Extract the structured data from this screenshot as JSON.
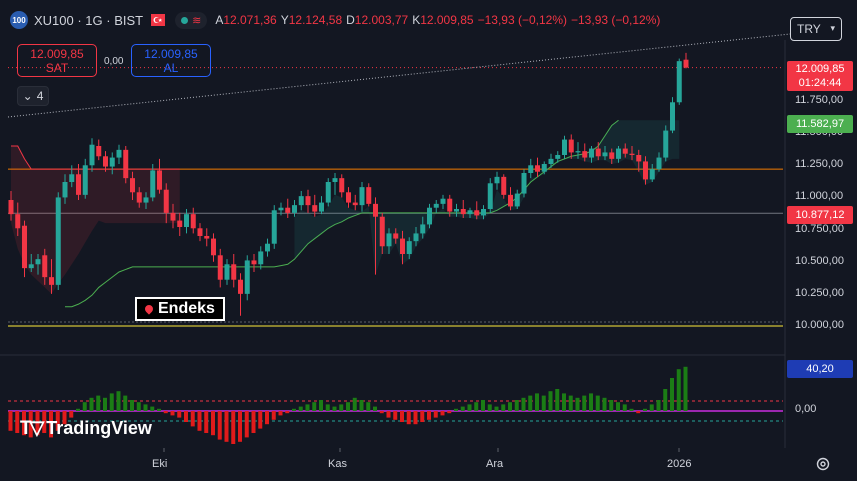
{
  "header": {
    "badge": "100",
    "symbol": "XU100 · 1G · BIST",
    "ohlc": [
      {
        "k": "A",
        "v": "12.071,36"
      },
      {
        "k": "Y",
        "v": "12.124,58"
      },
      {
        "k": "D",
        "v": "12.003,77"
      },
      {
        "k": "K",
        "v": "12.009,85"
      },
      {
        "k": "",
        "v": "−13,93 (−0,12%)"
      },
      {
        "k": "",
        "v": "−13,93 (−0,12%)"
      }
    ],
    "currency": "TRY"
  },
  "trade": {
    "sell_price": "12.009,85",
    "sell_label": "SAT",
    "spread": "0,00",
    "buy_price": "12.009,85",
    "buy_label": "AL"
  },
  "collapse_count": "4",
  "annotation": "Endeks",
  "watermark": "TradingView",
  "price_labels": {
    "last_price": "12.009,85",
    "countdown": "01:24:44",
    "green_level": "11.582,97",
    "red_level": "10.877,12",
    "indicator_value": "40,20"
  },
  "colors": {
    "up": "#26a69a",
    "down": "#f23645",
    "up_hist": "#1b7d15",
    "down_hist": "#e01b1b",
    "background": "#131722",
    "orange_line": "#f57c00",
    "yellow_line": "#ffeb3b"
  },
  "chart_data": {
    "type": "candlestick",
    "y_axis_ticks": [
      "11.750,00",
      "11.500,00",
      "11.250,00",
      "11.000,00",
      "10.750,00",
      "10.500,00",
      "10.250,00",
      "10.000,00"
    ],
    "ylim": [
      9950,
      12150
    ],
    "x_axis_ticks": [
      "Eki",
      "Kas",
      "Ara",
      "2026"
    ],
    "horizontal_levels": {
      "orange": 11220,
      "yellow": 10000,
      "red_dotted": 12010
    },
    "candles": [
      {
        "o": 10980,
        "h": 11050,
        "c": 10870,
        "l": 10820
      },
      {
        "o": 10870,
        "h": 10960,
        "c": 10760,
        "l": 10700
      },
      {
        "o": 10780,
        "h": 10820,
        "c": 10450,
        "l": 10380
      },
      {
        "o": 10450,
        "h": 10560,
        "c": 10480,
        "l": 10420
      },
      {
        "o": 10480,
        "h": 10560,
        "c": 10520,
        "l": 10400
      },
      {
        "o": 10550,
        "h": 10600,
        "c": 10380,
        "l": 10320
      },
      {
        "o": 10380,
        "h": 10520,
        "c": 10320,
        "l": 10250
      },
      {
        "o": 10320,
        "h": 11040,
        "c": 11000,
        "l": 10280
      },
      {
        "o": 11000,
        "h": 11180,
        "c": 11120,
        "l": 10950
      },
      {
        "o": 11120,
        "h": 11250,
        "c": 11180,
        "l": 11080
      },
      {
        "o": 11180,
        "h": 11260,
        "c": 11020,
        "l": 10980
      },
      {
        "o": 11020,
        "h": 11300,
        "c": 11250,
        "l": 10990
      },
      {
        "o": 11250,
        "h": 11460,
        "c": 11410,
        "l": 11200
      },
      {
        "o": 11400,
        "h": 11450,
        "c": 11320,
        "l": 11290
      },
      {
        "o": 11320,
        "h": 11360,
        "c": 11240,
        "l": 11200
      },
      {
        "o": 11240,
        "h": 11350,
        "c": 11310,
        "l": 11180
      },
      {
        "o": 11310,
        "h": 11410,
        "c": 11370,
        "l": 11260
      },
      {
        "o": 11370,
        "h": 11400,
        "c": 11150,
        "l": 11110
      },
      {
        "o": 11150,
        "h": 11200,
        "c": 11040,
        "l": 10980
      },
      {
        "o": 11040,
        "h": 11080,
        "c": 10960,
        "l": 10920
      },
      {
        "o": 10960,
        "h": 11040,
        "c": 11000,
        "l": 10910
      },
      {
        "o": 11000,
        "h": 11260,
        "c": 11210,
        "l": 10970
      },
      {
        "o": 11210,
        "h": 11300,
        "c": 11060,
        "l": 11030
      },
      {
        "o": 11060,
        "h": 11110,
        "c": 10880,
        "l": 10800
      },
      {
        "o": 10880,
        "h": 10950,
        "c": 10820,
        "l": 10760
      },
      {
        "o": 10820,
        "h": 10880,
        "c": 10770,
        "l": 10700
      },
      {
        "o": 10770,
        "h": 10910,
        "c": 10870,
        "l": 10720
      },
      {
        "o": 10870,
        "h": 10920,
        "c": 10760,
        "l": 10720
      },
      {
        "o": 10760,
        "h": 10800,
        "c": 10700,
        "l": 10660
      },
      {
        "o": 10700,
        "h": 10760,
        "c": 10680,
        "l": 10620
      },
      {
        "o": 10680,
        "h": 10720,
        "c": 10550,
        "l": 10500
      },
      {
        "o": 10550,
        "h": 10600,
        "c": 10360,
        "l": 10300
      },
      {
        "o": 10360,
        "h": 10520,
        "c": 10480,
        "l": 10320
      },
      {
        "o": 10480,
        "h": 10560,
        "c": 10360,
        "l": 10300
      },
      {
        "o": 10360,
        "h": 10410,
        "c": 10250,
        "l": 10080
      },
      {
        "o": 10250,
        "h": 10550,
        "c": 10510,
        "l": 10200
      },
      {
        "o": 10510,
        "h": 10560,
        "c": 10480,
        "l": 10420
      },
      {
        "o": 10480,
        "h": 10620,
        "c": 10580,
        "l": 10440
      },
      {
        "o": 10580,
        "h": 10680,
        "c": 10640,
        "l": 10540
      },
      {
        "o": 10640,
        "h": 10940,
        "c": 10900,
        "l": 10600
      },
      {
        "o": 10900,
        "h": 10960,
        "c": 10920,
        "l": 10860
      },
      {
        "o": 10920,
        "h": 10990,
        "c": 10880,
        "l": 10840
      },
      {
        "o": 10880,
        "h": 10980,
        "c": 10940,
        "l": 10850
      },
      {
        "o": 10940,
        "h": 11050,
        "c": 11010,
        "l": 10900
      },
      {
        "o": 11010,
        "h": 11060,
        "c": 10940,
        "l": 10880
      },
      {
        "o": 10940,
        "h": 11020,
        "c": 10890,
        "l": 10850
      },
      {
        "o": 10890,
        "h": 11010,
        "c": 10960,
        "l": 10870
      },
      {
        "o": 10960,
        "h": 11150,
        "c": 11120,
        "l": 10930
      },
      {
        "o": 11120,
        "h": 11190,
        "c": 11150,
        "l": 11020
      },
      {
        "o": 11150,
        "h": 11180,
        "c": 11040,
        "l": 11000
      },
      {
        "o": 11040,
        "h": 11080,
        "c": 10960,
        "l": 10920
      },
      {
        "o": 10960,
        "h": 11020,
        "c": 10940,
        "l": 10900
      },
      {
        "o": 10940,
        "h": 11120,
        "c": 11080,
        "l": 10890
      },
      {
        "o": 11080,
        "h": 11110,
        "c": 10950,
        "l": 10930
      },
      {
        "o": 10950,
        "h": 11000,
        "c": 10850,
        "l": 10400
      },
      {
        "o": 10850,
        "h": 10880,
        "c": 10620,
        "l": 10560
      },
      {
        "o": 10620,
        "h": 10760,
        "c": 10720,
        "l": 10560
      },
      {
        "o": 10720,
        "h": 10760,
        "c": 10680,
        "l": 10640
      },
      {
        "o": 10680,
        "h": 10740,
        "c": 10560,
        "l": 10480
      },
      {
        "o": 10560,
        "h": 10690,
        "c": 10660,
        "l": 10520
      },
      {
        "o": 10660,
        "h": 10770,
        "c": 10720,
        "l": 10620
      },
      {
        "o": 10720,
        "h": 10850,
        "c": 10790,
        "l": 10680
      },
      {
        "o": 10790,
        "h": 10950,
        "c": 10920,
        "l": 10760
      },
      {
        "o": 10920,
        "h": 10980,
        "c": 10950,
        "l": 10880
      },
      {
        "o": 10950,
        "h": 11020,
        "c": 10990,
        "l": 10910
      },
      {
        "o": 10990,
        "h": 11020,
        "c": 10890,
        "l": 10850
      },
      {
        "o": 10890,
        "h": 10950,
        "c": 10910,
        "l": 10850
      },
      {
        "o": 10910,
        "h": 10980,
        "c": 10870,
        "l": 10840
      },
      {
        "o": 10870,
        "h": 10920,
        "c": 10900,
        "l": 10840
      },
      {
        "o": 10900,
        "h": 10970,
        "c": 10860,
        "l": 10830
      },
      {
        "o": 10860,
        "h": 10940,
        "c": 10910,
        "l": 10830
      },
      {
        "o": 10910,
        "h": 11150,
        "c": 11110,
        "l": 10880
      },
      {
        "o": 11110,
        "h": 11200,
        "c": 11160,
        "l": 11060
      },
      {
        "o": 11160,
        "h": 11180,
        "c": 11020,
        "l": 10990
      },
      {
        "o": 11020,
        "h": 11080,
        "c": 10930,
        "l": 10900
      },
      {
        "o": 10930,
        "h": 11060,
        "c": 11030,
        "l": 10910
      },
      {
        "o": 11030,
        "h": 11220,
        "c": 11190,
        "l": 11000
      },
      {
        "o": 11190,
        "h": 11300,
        "c": 11250,
        "l": 11150
      },
      {
        "o": 11250,
        "h": 11310,
        "c": 11200,
        "l": 11160
      },
      {
        "o": 11200,
        "h": 11280,
        "c": 11260,
        "l": 11180
      },
      {
        "o": 11260,
        "h": 11340,
        "c": 11300,
        "l": 11230
      },
      {
        "o": 11300,
        "h": 11360,
        "c": 11330,
        "l": 11270
      },
      {
        "o": 11330,
        "h": 11480,
        "c": 11450,
        "l": 11300
      },
      {
        "o": 11450,
        "h": 11490,
        "c": 11350,
        "l": 11300
      },
      {
        "o": 11350,
        "h": 11430,
        "c": 11360,
        "l": 11300
      },
      {
        "o": 11360,
        "h": 11420,
        "c": 11310,
        "l": 11280
      },
      {
        "o": 11310,
        "h": 11400,
        "c": 11380,
        "l": 11270
      },
      {
        "o": 11380,
        "h": 11430,
        "c": 11320,
        "l": 11290
      },
      {
        "o": 11320,
        "h": 11400,
        "c": 11350,
        "l": 11290
      },
      {
        "o": 11350,
        "h": 11380,
        "c": 11300,
        "l": 11260
      },
      {
        "o": 11300,
        "h": 11400,
        "c": 11380,
        "l": 11270
      },
      {
        "o": 11380,
        "h": 11420,
        "c": 11340,
        "l": 11310
      },
      {
        "o": 11340,
        "h": 11400,
        "c": 11330,
        "l": 11290
      },
      {
        "o": 11330,
        "h": 11370,
        "c": 11280,
        "l": 11200
      },
      {
        "o": 11280,
        "h": 11320,
        "c": 11140,
        "l": 11100
      },
      {
        "o": 11140,
        "h": 11260,
        "c": 11220,
        "l": 11120
      },
      {
        "o": 11220,
        "h": 11350,
        "c": 11310,
        "l": 11200
      },
      {
        "o": 11310,
        "h": 11560,
        "c": 11520,
        "l": 11280
      },
      {
        "o": 11520,
        "h": 11780,
        "c": 11740,
        "l": 11500
      },
      {
        "o": 11740,
        "h": 12080,
        "c": 12060,
        "l": 11720
      },
      {
        "o": 12071.36,
        "h": 12124.58,
        "c": 12009.85,
        "l": 12003.77
      }
    ],
    "band_upper": [
      11400,
      11400,
      11300,
      11220,
      11220,
      11220,
      11220,
      11220,
      11220,
      11220,
      11220,
      11220,
      11220,
      11220,
      11220,
      11220,
      11220,
      11220,
      11220,
      11220,
      11220,
      11220,
      11220,
      11220,
      11220,
      11220,
      11450,
      11450,
      11450,
      11450,
      11450,
      11380,
      11300,
      11220,
      11150,
      11080,
      11000,
      10900,
      10900,
      10900,
      10900,
      10900
    ],
    "band_lower": [
      10800,
      10600,
      10480,
      10400,
      10350,
      10300,
      10250,
      10330,
      10400,
      10480,
      10560,
      10650,
      10740,
      10820,
      10800,
      10800,
      10800,
      10800,
      10800,
      10800,
      10800,
      10800,
      10800,
      10800,
      10800,
      10800,
      10800,
      10800,
      10800,
      10800,
      10800,
      10800,
      10800,
      10800,
      10800,
      10800,
      10800,
      10800,
      10800,
      10800,
      10800,
      10800
    ],
    "support_line": [
      10150,
      10150,
      10170,
      10200,
      10240,
      10300,
      10340,
      10380,
      10420,
      10440,
      10460,
      10460,
      10460,
      10460,
      10460,
      10460,
      10460,
      10460,
      10460,
      10460,
      10460,
      10460,
      10460,
      10460,
      10460,
      10460,
      10460,
      10460,
      10460,
      10460,
      10460,
      10460,
      10470,
      10480,
      10520,
      10580,
      10640,
      10680,
      10720,
      10760,
      10790,
      10810,
      10840,
      10860,
      10880,
      10880,
      10880,
      10880,
      10880,
      10880,
      10880,
      10880,
      10880,
      10880,
      10880,
      10880,
      10880,
      10880,
      10880,
      10880,
      10880,
      10880,
      10880,
      10880,
      10900,
      10930,
      10960,
      11000,
      11060,
      11120,
      11160,
      11200,
      11240,
      11280,
      11300,
      11320,
      11330,
      11340,
      11360,
      11400,
      11480,
      11560,
      11600
    ],
    "histogram": [
      -18,
      -20,
      -22,
      -24,
      -22,
      -20,
      -24,
      -18,
      -12,
      -6,
      2,
      8,
      12,
      14,
      12,
      16,
      18,
      14,
      10,
      8,
      6,
      4,
      2,
      -2,
      -4,
      -6,
      -10,
      -14,
      -18,
      -20,
      -22,
      -26,
      -28,
      -30,
      -28,
      -24,
      -20,
      -16,
      -12,
      -8,
      -4,
      -2,
      2,
      4,
      6,
      8,
      10,
      6,
      4,
      6,
      8,
      12,
      10,
      8,
      4,
      -2,
      -6,
      -8,
      -10,
      -12,
      -12,
      -10,
      -8,
      -6,
      -4,
      -2,
      2,
      4,
      6,
      8,
      10,
      6,
      4,
      6,
      8,
      10,
      12,
      14,
      16,
      14,
      18,
      20,
      16,
      14,
      12,
      14,
      16,
      14,
      12,
      10,
      8,
      6,
      2,
      -2,
      2,
      6,
      10,
      20,
      30,
      38,
      40.2
    ]
  }
}
